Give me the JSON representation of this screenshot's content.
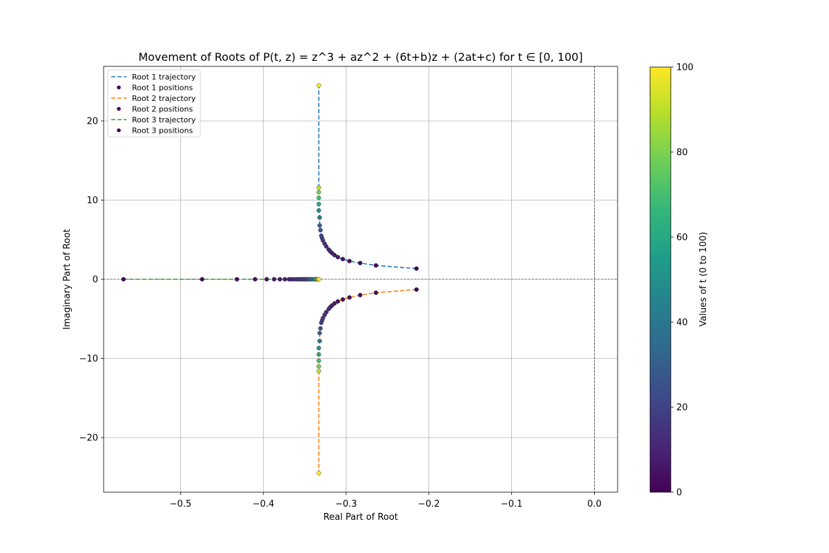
{
  "chart_data": {
    "type": "scatter",
    "title": "Movement of Roots of P(t, z) = z^3 + az^2 + (6t+b)z + (2at+c) for t ∈ [0, 100]",
    "xlabel": "Real Part of Root",
    "ylabel": "Imaginary Part of Root",
    "xlim": [
      -0.593,
      0.028
    ],
    "ylim": [
      -26.9,
      26.9
    ],
    "xticks": [
      -0.5,
      -0.4,
      -0.3,
      -0.2,
      -0.1,
      0.0
    ],
    "xtick_labels": [
      "−0.5",
      "−0.4",
      "−0.3",
      "−0.2",
      "−0.1",
      "0.0"
    ],
    "yticks": [
      -20,
      -10,
      0,
      10,
      20
    ],
    "ytick_labels": [
      "−20",
      "−10",
      "0",
      "10",
      "20"
    ],
    "grid": true,
    "reference_lines": {
      "x": 0,
      "y": 0
    },
    "legend": {
      "position": "top-left",
      "entries": [
        {
          "label": "Root 1 trajectory",
          "kind": "line",
          "color": "#1f77b4"
        },
        {
          "label": "Root 1 positions",
          "kind": "marker",
          "color": "#440154"
        },
        {
          "label": "Root 2 trajectory",
          "kind": "line",
          "color": "#ff7f0e"
        },
        {
          "label": "Root 2 positions",
          "kind": "marker",
          "color": "#440154"
        },
        {
          "label": "Root 3 trajectory",
          "kind": "line",
          "color": "#2ca02c"
        },
        {
          "label": "Root 3 positions",
          "kind": "marker",
          "color": "#440154"
        }
      ]
    },
    "colorbar": {
      "label": "Values of t (0 to 100)",
      "range": [
        0,
        100
      ],
      "ticks": [
        0,
        20,
        40,
        60,
        80,
        100
      ],
      "colormap": "viridis",
      "stops": [
        "#440154",
        "#482878",
        "#3e4989",
        "#31688e",
        "#26828e",
        "#1f9e89",
        "#35b779",
        "#6ece58",
        "#b5de2b",
        "#fde725"
      ]
    },
    "series": [
      {
        "name": "Root 1",
        "line_color": "#1f77b4",
        "t": [
          1,
          2,
          3,
          4,
          5,
          6,
          7,
          8,
          9,
          10,
          12,
          14,
          16,
          18,
          20,
          25,
          30,
          40,
          50,
          60,
          70,
          80,
          90,
          100
        ],
        "real": [
          -0.215,
          -0.264,
          -0.283,
          -0.296,
          -0.304,
          -0.31,
          -0.314,
          -0.317,
          -0.319,
          -0.321,
          -0.324,
          -0.326,
          -0.328,
          -0.329,
          -0.33,
          -0.331,
          -0.332,
          -0.332,
          -0.333,
          -0.333,
          -0.333,
          -0.333,
          -0.333,
          -0.333
        ],
        "imag": [
          1.35,
          1.75,
          2.05,
          2.3,
          2.55,
          2.8,
          3.05,
          3.3,
          3.5,
          3.75,
          4.15,
          4.5,
          4.9,
          5.2,
          5.5,
          6.2,
          6.8,
          7.8,
          8.7,
          9.5,
          10.3,
          11.0,
          11.6,
          24.5
        ]
      },
      {
        "name": "Root 2",
        "line_color": "#ff7f0e",
        "t": [
          1,
          2,
          3,
          4,
          5,
          6,
          7,
          8,
          9,
          10,
          12,
          14,
          16,
          18,
          20,
          25,
          30,
          40,
          50,
          60,
          70,
          80,
          90,
          100
        ],
        "real": [
          -0.215,
          -0.264,
          -0.283,
          -0.296,
          -0.304,
          -0.31,
          -0.314,
          -0.317,
          -0.319,
          -0.321,
          -0.324,
          -0.326,
          -0.328,
          -0.329,
          -0.33,
          -0.331,
          -0.332,
          -0.332,
          -0.333,
          -0.333,
          -0.333,
          -0.333,
          -0.333,
          -0.333
        ],
        "imag": [
          -1.3,
          -1.7,
          -2.0,
          -2.3,
          -2.55,
          -2.8,
          -3.05,
          -3.3,
          -3.5,
          -3.75,
          -4.15,
          -4.5,
          -4.9,
          -5.2,
          -5.5,
          -6.2,
          -6.8,
          -7.8,
          -8.7,
          -9.5,
          -10.3,
          -11.0,
          -11.6,
          -24.5
        ]
      },
      {
        "name": "Root 3",
        "line_color": "#2ca02c",
        "t": [
          1,
          2,
          3,
          4,
          5,
          6,
          7,
          8,
          9,
          10,
          11,
          12,
          13,
          14,
          15,
          16,
          17,
          18,
          19,
          20,
          22,
          25,
          30,
          40,
          50,
          60,
          70,
          80,
          90,
          100
        ],
        "real": [
          -0.569,
          -0.474,
          -0.432,
          -0.41,
          -0.396,
          -0.387,
          -0.38,
          -0.374,
          -0.369,
          -0.366,
          -0.363,
          -0.36,
          -0.358,
          -0.356,
          -0.354,
          -0.352,
          -0.351,
          -0.35,
          -0.348,
          -0.347,
          -0.346,
          -0.344,
          -0.342,
          -0.34,
          -0.338,
          -0.337,
          -0.336,
          -0.335,
          -0.334,
          -0.333
        ],
        "imag": [
          0,
          0,
          0,
          0,
          0,
          0,
          0,
          0,
          0,
          0,
          0,
          0,
          0,
          0,
          0,
          0,
          0,
          0,
          0,
          0,
          0,
          0,
          0,
          0,
          0,
          0,
          0,
          0,
          0,
          0
        ]
      }
    ]
  }
}
